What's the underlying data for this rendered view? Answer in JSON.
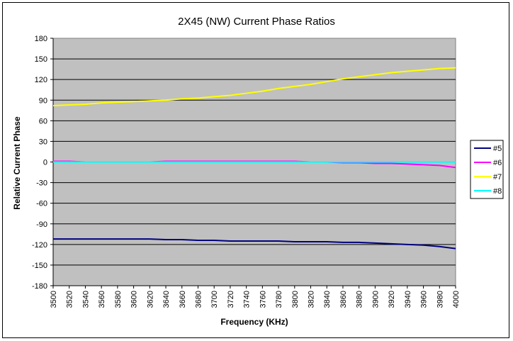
{
  "chart_data": {
    "type": "line",
    "title": "2X45 (NW) Current Phase Ratios",
    "xlabel": "Frequency (KHz)",
    "ylabel": "Relative Current Phase",
    "x": [
      3500,
      3520,
      3540,
      3560,
      3580,
      3600,
      3620,
      3640,
      3660,
      3680,
      3700,
      3720,
      3740,
      3760,
      3780,
      3800,
      3820,
      3840,
      3860,
      3880,
      3900,
      3920,
      3940,
      3960,
      3980,
      4000
    ],
    "xticks": [
      "3500",
      "3520",
      "3540",
      "3560",
      "3580",
      "3600",
      "3620",
      "3640",
      "3660",
      "3680",
      "3700",
      "3720",
      "3740",
      "3760",
      "3780",
      "3800",
      "3820",
      "3840",
      "3860",
      "3880",
      "3900",
      "3920",
      "3940",
      "3960",
      "3980",
      "4000"
    ],
    "yticks": [
      "180",
      "150",
      "120",
      "90",
      "60",
      "30",
      "0",
      "-30",
      "-60",
      "-90",
      "-120",
      "-150",
      "-180"
    ],
    "ylim": [
      -180,
      180
    ],
    "xlim": [
      3500,
      4000
    ],
    "grid": true,
    "plot_background": "#c0c0c0",
    "legend_position": "right",
    "series": [
      {
        "name": "#5",
        "color": "#000080",
        "values": [
          -112,
          -112,
          -112,
          -112,
          -112,
          -112,
          -112,
          -113,
          -113,
          -114,
          -114,
          -115,
          -115,
          -115,
          -115,
          -116,
          -116,
          -116,
          -117,
          -117,
          -118,
          -119,
          -120,
          -121,
          -123,
          -126
        ]
      },
      {
        "name": "#6",
        "color": "#ff00ff",
        "values": [
          1,
          1,
          0,
          0,
          0,
          0,
          0,
          1,
          1,
          1,
          1,
          1,
          1,
          1,
          1,
          1,
          0,
          0,
          -1,
          -1,
          -2,
          -2,
          -3,
          -4,
          -5,
          -8
        ]
      },
      {
        "name": "#7",
        "color": "#ffff00",
        "values": [
          82,
          83,
          84,
          86,
          87,
          88,
          89,
          90,
          92,
          93,
          95,
          97,
          100,
          103,
          107,
          110,
          113,
          117,
          121,
          124,
          127,
          130,
          132,
          134,
          136,
          137
        ]
      },
      {
        "name": "#8",
        "color": "#00ffff",
        "values": [
          0,
          0,
          0,
          0,
          0,
          0,
          0,
          0,
          0,
          0,
          0,
          0,
          0,
          0,
          0,
          0,
          0,
          0,
          0,
          0,
          0,
          0,
          0,
          0,
          0,
          0
        ]
      }
    ]
  }
}
